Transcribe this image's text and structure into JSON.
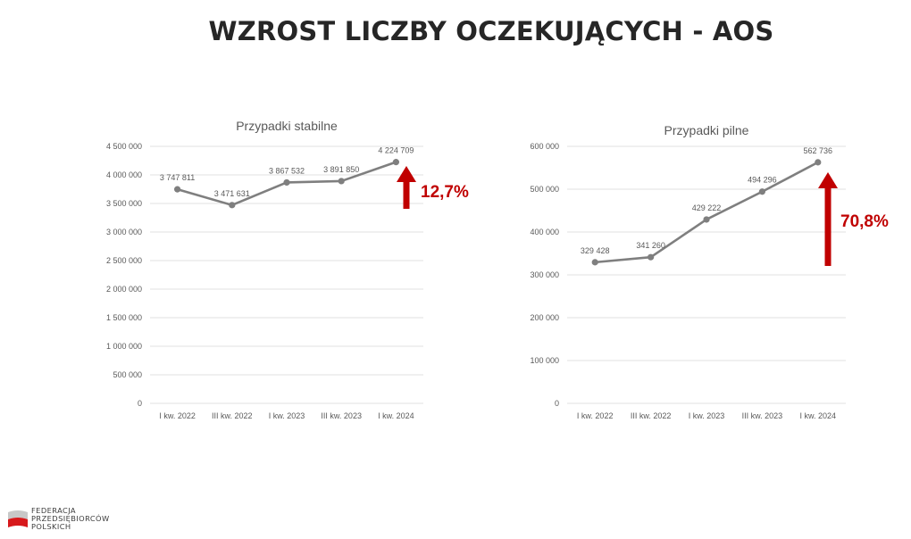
{
  "page": {
    "title": "WZROST LICZBY OCZEKUJĄCYCH - AOS"
  },
  "chart_data": [
    {
      "type": "line",
      "title": "Przypadki stabilne",
      "categories": [
        "I kw. 2022",
        "III kw. 2022",
        "I kw. 2023",
        "III kw. 2023",
        "I kw. 2024"
      ],
      "values": [
        3747811,
        3471631,
        3867532,
        3891850,
        4224709
      ],
      "value_labels": [
        "3 747 811",
        "3 471 631",
        "3 867 532",
        "3 891 850",
        "4 224 709"
      ],
      "ylim": [
        0,
        4500000
      ],
      "yticks": [
        0,
        500000,
        1000000,
        1500000,
        2000000,
        2500000,
        3000000,
        3500000,
        4000000,
        4500000
      ],
      "ytick_labels": [
        "0",
        "500 000",
        "1 000 000",
        "1 500 000",
        "2 000 000",
        "2 500 000",
        "3 000 000",
        "3 500 000",
        "4 000 000",
        "4 500 000"
      ],
      "grid": true,
      "line_color": "#7f7f7f",
      "growth_label": "12,7%",
      "growth_color": "#c00000"
    },
    {
      "type": "line",
      "title": "Przypadki pilne",
      "categories": [
        "I kw. 2022",
        "III kw. 2022",
        "I kw. 2023",
        "III kw. 2023",
        "I kw. 2024"
      ],
      "values": [
        329428,
        341260,
        429222,
        494296,
        562736
      ],
      "value_labels": [
        "329 428",
        "341 260",
        "429 222",
        "494 296",
        "562 736"
      ],
      "ylim": [
        0,
        600000
      ],
      "yticks": [
        0,
        100000,
        200000,
        300000,
        400000,
        500000,
        600000
      ],
      "ytick_labels": [
        "0",
        "100 000",
        "200 000",
        "300 000",
        "400 000",
        "500 000",
        "600 000"
      ],
      "grid": true,
      "line_color": "#7f7f7f",
      "growth_label": "70,8%",
      "growth_color": "#c00000"
    }
  ],
  "logo": {
    "lines": [
      "FEDERACJA",
      "PRZEDSIĘBIORCÓW",
      "POLSKICH"
    ],
    "colors": {
      "red": "#d7191c",
      "gray": "#c8c8c8"
    }
  }
}
